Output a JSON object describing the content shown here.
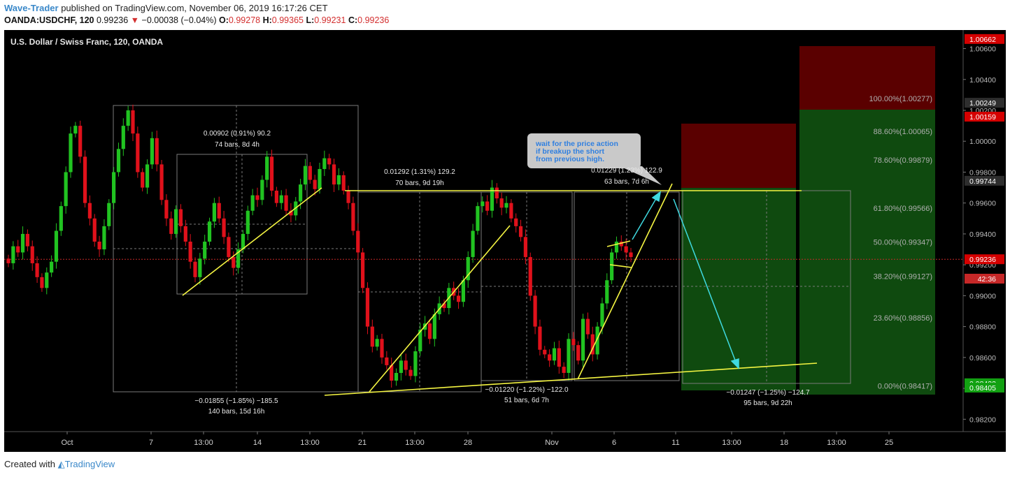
{
  "header": {
    "author": "Wave-Trader",
    "published_text": "published on TradingView.com, November 06, 2019 16:17:26 CET",
    "symbol": "OANDA:USDCHF, 120",
    "last_price": "0.99236",
    "change": "−0.00038 (−0.04%)",
    "open_label": "O:",
    "open": "0.99278",
    "high_label": "H:",
    "high": "0.99365",
    "low_label": "L:",
    "low": "0.99231",
    "close_label": "C:",
    "close": "0.99236"
  },
  "chart_title": "U.S. Dollar / Swiss Franc, 120, OANDA",
  "footer": {
    "created_with": "Created with",
    "brand": "TradingView"
  },
  "colors": {
    "up": "#21c321",
    "down": "#e0111b",
    "trend": "#f5f542",
    "arrow": "#3fd9e0",
    "price_line": "#c62828",
    "stop_zone": "#5a0000",
    "target_zone": "#0f4a0f",
    "background": "#000000"
  },
  "callout_text": [
    "wait for the price action",
    "if breakup the short",
    "from previous high."
  ],
  "chart_data": {
    "type": "line",
    "title": "U.S. Dollar / Swiss Franc, 120, OANDA",
    "xlabel": "",
    "ylabel": "",
    "x_ticks": [
      "Oct",
      "7",
      "13:00",
      "14",
      "13:00",
      "21",
      "13:00",
      "28",
      "Nov",
      "6",
      "11",
      "13:00",
      "18",
      "13:00",
      "25"
    ],
    "y_ticks": [
      "1.00600",
      "1.00400",
      "1.00200",
      "1.00000",
      "0.99800",
      "0.99600",
      "0.99400",
      "0.99200",
      "0.99000",
      "0.98800",
      "0.98600",
      "0.98400",
      "0.98200"
    ],
    "ylim": [
      0.9812,
      1.0072
    ],
    "price_labels": [
      {
        "value": 1.00662,
        "text": "1.00662",
        "color": "#d50000"
      },
      {
        "value": 1.00249,
        "text": "1.00249",
        "color": "#2e2e2e"
      },
      {
        "value": 1.00159,
        "text": "1.00159",
        "color": "#d50000"
      },
      {
        "value": 0.99744,
        "text": "0.99744",
        "color": "#2e2e2e"
      },
      {
        "value": 0.99236,
        "text": "0.99236",
        "color": "#d50000"
      },
      {
        "value": 0.98433,
        "text": "0.98433",
        "color": "#12a112"
      },
      {
        "value": 0.98405,
        "text": "0.98405",
        "color": "#12a112"
      }
    ],
    "countdown": "42:36",
    "fibonacci": [
      {
        "level": "100.00%",
        "price": 1.00277,
        "text": "100.00%(1.00277)"
      },
      {
        "level": "88.60%",
        "price": 1.00065,
        "text": "88.60%(1.00065)"
      },
      {
        "level": "78.60%",
        "price": 0.99879,
        "text": "78.60%(0.99879)"
      },
      {
        "level": "61.80%",
        "price": 0.99566,
        "text": "61.80%(0.99566)"
      },
      {
        "level": "50.00%",
        "price": 0.99347,
        "text": "50.00%(0.99347)"
      },
      {
        "level": "38.20%",
        "price": 0.99127,
        "text": "38.20%(0.99127)"
      },
      {
        "level": "23.60%",
        "price": 0.98856,
        "text": "23.60%(0.98856)"
      },
      {
        "level": "0.00%",
        "price": 0.98417,
        "text": "0.00%(0.98417)"
      }
    ],
    "measure_labels": [
      {
        "line1": "0.00902 (0.91%) 90.2",
        "line2": "74 bars, 8d 4h"
      },
      {
        "line1": "0.01292 (1.31%) 129.2",
        "line2": "70 bars, 9d 19h"
      },
      {
        "line1": "0.01229 (1.23%) 122.9",
        "line2": "63 bars, 7d 6h"
      },
      {
        "line1": "−0.01855 (−1.85%) −185.5",
        "line2": "140 bars, 15d 16h"
      },
      {
        "line1": "−0.01220 (−1.22%) −122.0",
        "line2": "51 bars, 6d 7h"
      },
      {
        "line1": "−0.01247 (−1.25%) −124.7",
        "line2": "95 bars, 9d 22h"
      }
    ],
    "series": [
      {
        "values": [
          0.9921,
          0.9932,
          0.9928,
          0.994,
          0.9932,
          0.9921,
          0.9912,
          0.9905,
          0.9915,
          0.9922,
          0.9942,
          0.9958,
          0.998,
          1.0005,
          1.001,
          0.999,
          0.996,
          0.995,
          0.9935,
          0.993,
          0.9945,
          0.996,
          0.998,
          0.9995,
          1.001,
          1.002,
          1.0005,
          0.998,
          0.997,
          0.9985,
          1.0002,
          0.9985,
          0.9962,
          0.995,
          0.994,
          0.9956,
          0.9945,
          0.9935,
          0.9922,
          0.9912,
          0.9924,
          0.9935,
          0.9948,
          0.996,
          0.995,
          0.9938,
          0.9925,
          0.9918,
          0.993,
          0.994,
          0.9955,
          0.9965,
          0.9962,
          0.9975,
          0.999,
          0.9968,
          0.996,
          0.9965,
          0.9955,
          0.9952,
          0.9961,
          0.9972,
          0.9984,
          0.9975,
          0.9969,
          0.9982,
          0.9989,
          0.9985,
          0.9972,
          0.9978,
          0.9968,
          0.996,
          0.9942,
          0.9928,
          0.9905,
          0.988,
          0.9867,
          0.9872,
          0.986,
          0.9855,
          0.9845,
          0.985,
          0.9858,
          0.9852,
          0.9848,
          0.9864,
          0.9878,
          0.9882,
          0.9872,
          0.9888,
          0.9895,
          0.9892,
          0.9905,
          0.99,
          0.9896,
          0.991,
          0.9925,
          0.9942,
          0.9958,
          0.9961,
          0.9955,
          0.997,
          0.9963,
          0.9957,
          0.996,
          0.995,
          0.9945,
          0.9938,
          0.9925,
          0.99,
          0.988,
          0.9865,
          0.9862,
          0.9858,
          0.9866,
          0.9854,
          0.985,
          0.9872,
          0.9868,
          0.9858,
          0.9885,
          0.9875,
          0.9862,
          0.988,
          0.9895,
          0.991,
          0.9928,
          0.9935,
          0.9932,
          0.9928,
          0.9925
        ]
      }
    ]
  }
}
